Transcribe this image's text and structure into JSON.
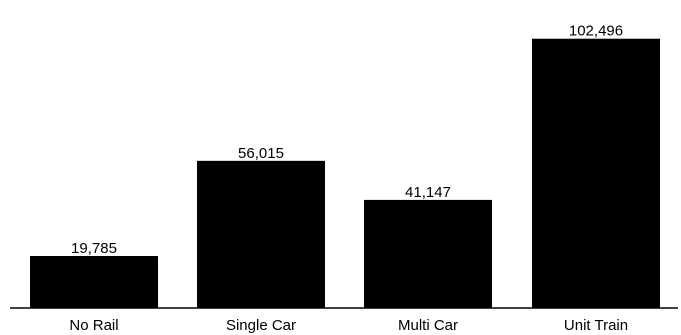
{
  "chart_data": {
    "type": "bar",
    "title": "",
    "xlabel": "",
    "ylabel": "",
    "categories": [
      "No Rail",
      "Single Car",
      "Multi Car",
      "Unit Train"
    ],
    "values": [
      19785,
      56015,
      41147,
      102496
    ],
    "data_labels": [
      "19,785",
      "56,015",
      "41,147",
      "102,496"
    ],
    "ylim": [
      0,
      110000
    ],
    "grid": false,
    "legend": "none",
    "bar_color": "#000000"
  }
}
